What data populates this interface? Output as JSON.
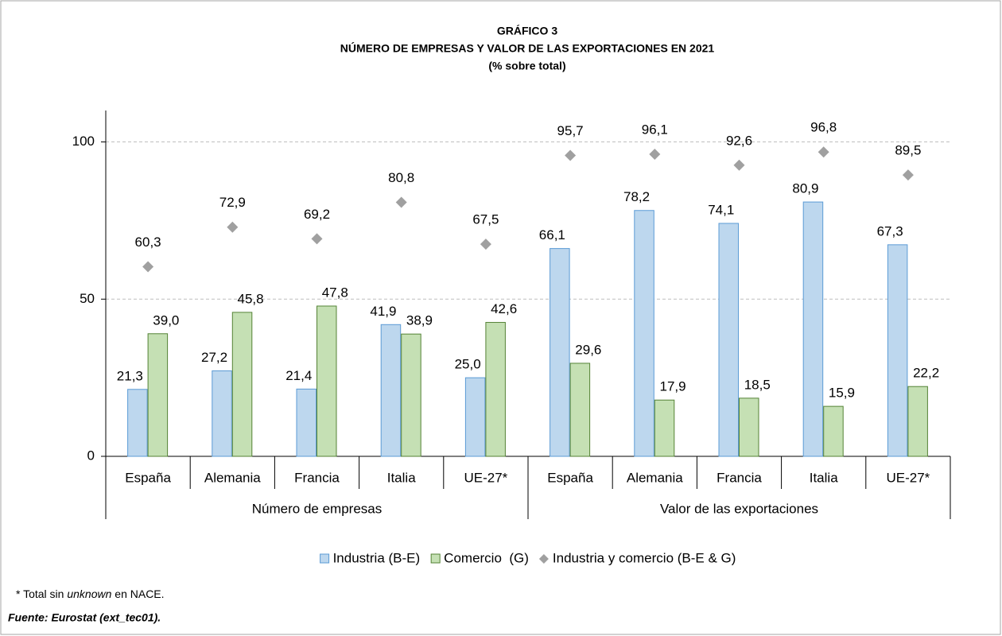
{
  "chart_data": {
    "type": "bar",
    "title": "GRÁFICO 3",
    "subtitle": "NÚMERO DE EMPRESAS Y VALOR DE LAS EXPORTACIONES EN 2021",
    "unit_note": "(% sobre total)",
    "categories": [
      "España",
      "Alemania",
      "Francia",
      "Italia",
      "UE-27*",
      "España",
      "Alemania",
      "Francia",
      "Italia",
      "UE-27*"
    ],
    "category_groups": [
      "Número de empresas",
      "Valor de las exportaciones"
    ],
    "series": [
      {
        "name": "Industria (B-E)",
        "kind": "bar",
        "color": "#bdd7ee",
        "edgecolor": "#5b9bd5",
        "values": [
          21.3,
          27.2,
          21.4,
          41.9,
          25.0,
          66.1,
          78.2,
          74.1,
          80.9,
          67.3
        ],
        "value_labels": [
          "21,3",
          "27,2",
          "21,4",
          "41,9",
          "25,0",
          "66,1",
          "78,2",
          "74,1",
          "80,9",
          "67,3"
        ]
      },
      {
        "name": "Comercio  (G)",
        "kind": "bar",
        "color": "#c5e0b4",
        "edgecolor": "#548235",
        "values": [
          39.0,
          45.8,
          47.8,
          38.9,
          42.6,
          29.6,
          17.9,
          18.5,
          15.9,
          22.2
        ],
        "value_labels": [
          "39,0",
          "45,8",
          "47,8",
          "38,9",
          "42,6",
          "29,6",
          "17,9",
          "18,5",
          "15,9",
          "22,2"
        ]
      },
      {
        "name": "Industria y comercio (B-E & G)",
        "kind": "diamond",
        "color": "#a0a0a0",
        "values": [
          60.3,
          72.9,
          69.2,
          80.8,
          67.5,
          95.7,
          96.1,
          92.6,
          96.8,
          89.5
        ],
        "value_labels": [
          "60,3",
          "72,9",
          "69,2",
          "80,8",
          "67,5",
          "95,7",
          "96,1",
          "92,6",
          "96,8",
          "89,5"
        ]
      }
    ],
    "ylim": [
      0,
      110
    ],
    "yticks": [
      0,
      50,
      100
    ],
    "grid": true,
    "legend": "bottom",
    "footnote": [
      "* Total sin ",
      "unknown",
      " en NACE."
    ],
    "source": "Fuente: Eurostat (ext_tec01)."
  }
}
